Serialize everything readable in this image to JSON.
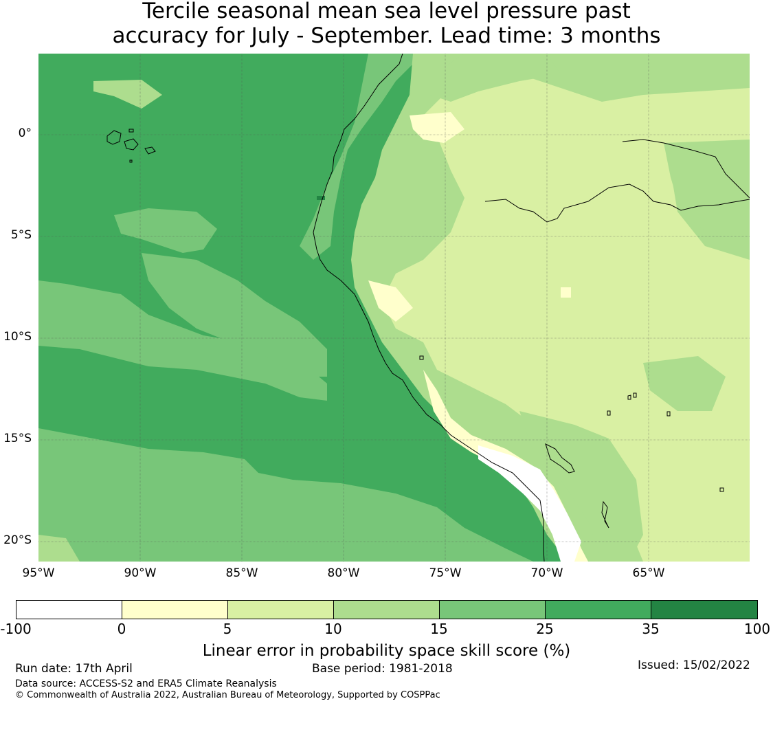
{
  "title": {
    "line1": "Tercile seasonal mean sea level pressure past",
    "line2": "accuracy for July - September. Lead time: 3 months"
  },
  "map": {
    "lon_range": [
      -95,
      -60
    ],
    "lat_range": [
      -21,
      4
    ],
    "lon_ticks": [
      "95°W",
      "90°W",
      "85°W",
      "80°W",
      "75°W",
      "70°W",
      "65°W"
    ],
    "lat_ticks": [
      "0°",
      "5°S",
      "10°S",
      "15°S",
      "20°S"
    ],
    "gridlines": true
  },
  "colorbar": {
    "label": "Linear error in probability space skill score (%)",
    "ticks": [
      "-100",
      "0",
      "5",
      "10",
      "15",
      "25",
      "35",
      "100"
    ],
    "colors": [
      "#ffffff",
      "#ffffcc",
      "#d9f0a3",
      "#addd8e",
      "#78c679",
      "#41ab5d",
      "#238443"
    ]
  },
  "footer": {
    "run_date": "Run date: 17th April",
    "base_period": "Base period: 1981-2018",
    "issued": "Issued: 15/02/2022",
    "data_source": "Data source: ACCESS-S2 and ERA5 Climate Reanalysis",
    "copyright": "© Commonwealth of Australia 2022, Australian Bureau of Meteorology, Supported by COSPPac"
  }
}
